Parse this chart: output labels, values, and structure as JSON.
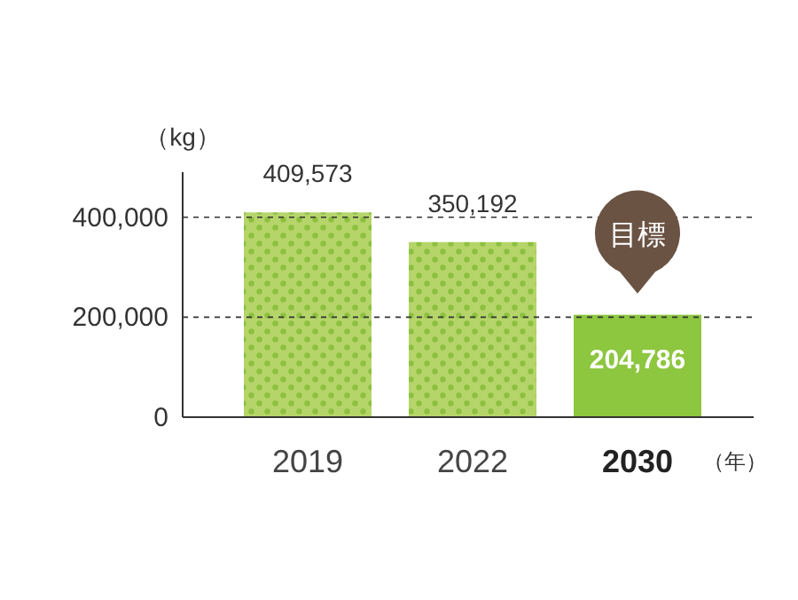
{
  "chart_data": {
    "type": "bar",
    "ylabel": "（kg）",
    "xlabel": "（年）",
    "categories": [
      "2019",
      "2022",
      "2030"
    ],
    "values": [
      409573,
      350192,
      204786
    ],
    "colors": [
      "#b5d56a",
      "#b5d56a",
      "#8dc63f"
    ],
    "ylim": [
      0,
      490000
    ],
    "yticks": [
      {
        "value": 0,
        "label": "0"
      },
      {
        "value": 200000,
        "label": "200,000"
      },
      {
        "value": 400000,
        "label": "400,000"
      }
    ],
    "value_labels": [
      "409,573",
      "350,192",
      "204,786"
    ],
    "grid": "y",
    "annotations": [
      {
        "text": "目標",
        "x": "2030",
        "y": 204786
      }
    ]
  }
}
